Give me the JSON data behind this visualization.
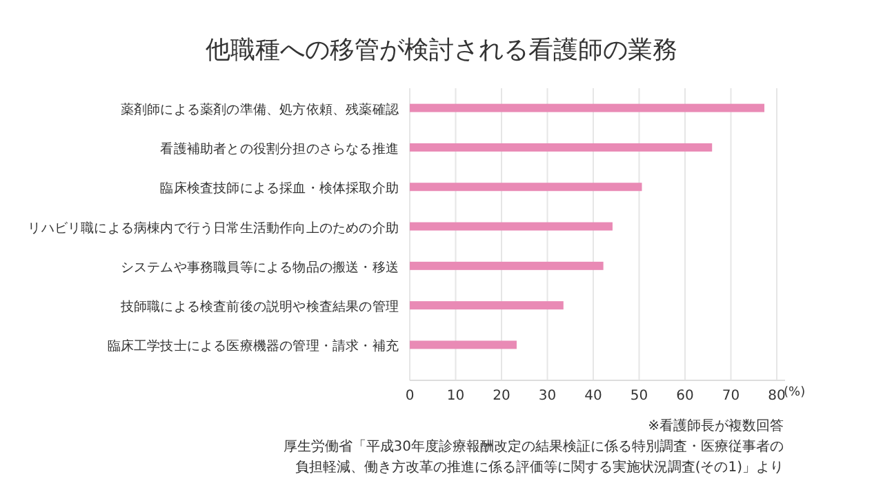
{
  "chart_data": {
    "type": "bar",
    "orientation": "horizontal",
    "title": "他職種への移管が検討される看護師の業務",
    "categories": [
      "薬剤師による薬剤の準備、処方依頼、残薬確認",
      "看護補助者との役割分担のさらなる推進",
      "臨床検査技師による採血・検体採取介助",
      "リハビリ職による病棟内で行う日常生活動作向上のための介助",
      "システムや事務職員等による物品の搬送・移送",
      "技師職による検査前後の説明や検査結果の管理",
      "臨床工学技士による医療機器の管理・請求・補充"
    ],
    "values": [
      77.3,
      65.9,
      50.6,
      44.2,
      42.2,
      33.5,
      23.3
    ],
    "color": "#e98ab5",
    "xlim": [
      0,
      80
    ],
    "xticks": [
      0,
      10,
      20,
      30,
      40,
      50,
      60,
      70,
      80
    ],
    "xlabel": "(%)",
    "grid": "x",
    "annotations": [
      "※看護師長が複数回答",
      "厚生労働省「平成30年度診療報酬改定の結果検証に係る特別調査・医療従事者の",
      "負担軽減、働き方改革の推進に係る評価等に関する実施状況調査(その1)」より"
    ]
  }
}
